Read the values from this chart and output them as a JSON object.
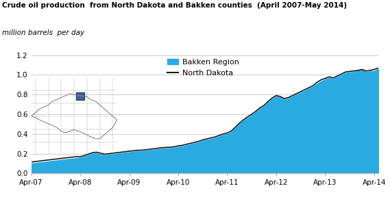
{
  "title": "Crude oil production  from North Dakota and Bakken counties  (April 2007-May 2014)",
  "subtitle": "million barrels  per day",
  "x_tick_labels": [
    "Apr-07",
    "Apr-08",
    "Apr-09",
    "Apr-10",
    "Apr-11",
    "Apr-12",
    "Apr-13",
    "Apr-14"
  ],
  "ylim": [
    0,
    1.2
  ],
  "yticks": [
    0.0,
    0.2,
    0.4,
    0.6,
    0.8,
    1.0,
    1.2
  ],
  "bakken_color": "#29ABE2",
  "nd_color": "#1a1a1a",
  "bg_color": "#ffffff",
  "grid_color": "#cccccc",
  "months": [
    0,
    1,
    2,
    3,
    4,
    5,
    6,
    7,
    8,
    9,
    10,
    11,
    12,
    13,
    14,
    15,
    16,
    17,
    18,
    19,
    20,
    21,
    22,
    23,
    24,
    25,
    26,
    27,
    28,
    29,
    30,
    31,
    32,
    33,
    34,
    35,
    36,
    37,
    38,
    39,
    40,
    41,
    42,
    43,
    44,
    45,
    46,
    47,
    48,
    49,
    50,
    51,
    52,
    53,
    54,
    55,
    56,
    57,
    58,
    59,
    60,
    61,
    62,
    63,
    64,
    65,
    66,
    67,
    68,
    69,
    70,
    71,
    72,
    73,
    74,
    75,
    76,
    77,
    78,
    79,
    80,
    81,
    82,
    83,
    84,
    85
  ],
  "bakken_values": [
    0.1,
    0.105,
    0.11,
    0.115,
    0.12,
    0.125,
    0.13,
    0.135,
    0.14,
    0.145,
    0.15,
    0.155,
    0.16,
    0.17,
    0.185,
    0.2,
    0.205,
    0.195,
    0.185,
    0.19,
    0.195,
    0.2,
    0.205,
    0.21,
    0.215,
    0.22,
    0.225,
    0.225,
    0.23,
    0.235,
    0.24,
    0.245,
    0.25,
    0.255,
    0.255,
    0.26,
    0.27,
    0.275,
    0.285,
    0.295,
    0.305,
    0.315,
    0.33,
    0.34,
    0.35,
    0.36,
    0.375,
    0.39,
    0.4,
    0.42,
    0.46,
    0.5,
    0.535,
    0.565,
    0.59,
    0.62,
    0.655,
    0.68,
    0.72,
    0.755,
    0.78,
    0.77,
    0.75,
    0.76,
    0.78,
    0.8,
    0.82,
    0.84,
    0.86,
    0.88,
    0.91,
    0.935,
    0.955,
    0.97,
    0.96,
    0.98,
    1.0,
    1.02,
    1.025,
    1.03,
    1.04,
    1.05,
    1.03,
    1.035,
    1.04,
    1.06
  ],
  "nd_values": [
    0.115,
    0.12,
    0.125,
    0.13,
    0.135,
    0.14,
    0.145,
    0.15,
    0.155,
    0.16,
    0.165,
    0.17,
    0.17,
    0.18,
    0.195,
    0.21,
    0.215,
    0.205,
    0.195,
    0.2,
    0.205,
    0.21,
    0.215,
    0.22,
    0.225,
    0.23,
    0.235,
    0.235,
    0.24,
    0.245,
    0.25,
    0.255,
    0.26,
    0.265,
    0.265,
    0.27,
    0.28,
    0.285,
    0.295,
    0.305,
    0.315,
    0.325,
    0.34,
    0.35,
    0.36,
    0.37,
    0.385,
    0.4,
    0.41,
    0.43,
    0.47,
    0.51,
    0.545,
    0.575,
    0.6,
    0.63,
    0.665,
    0.69,
    0.73,
    0.765,
    0.79,
    0.78,
    0.76,
    0.77,
    0.79,
    0.81,
    0.83,
    0.85,
    0.87,
    0.89,
    0.925,
    0.95,
    0.965,
    0.98,
    0.97,
    0.99,
    1.01,
    1.03,
    1.035,
    1.04,
    1.045,
    1.055,
    1.04,
    1.045,
    1.055,
    1.07
  ],
  "title_fontsize": 7.5,
  "subtitle_fontsize": 7.5,
  "tick_fontsize": 7.5,
  "legend_fontsize": 8
}
